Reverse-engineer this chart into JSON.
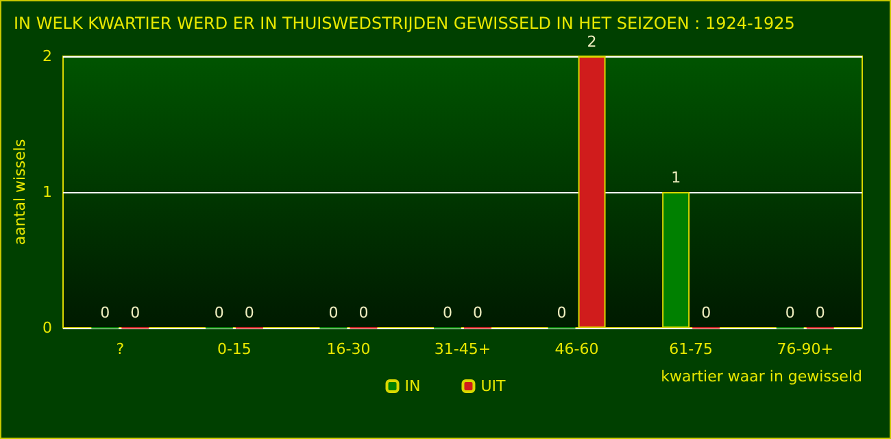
{
  "chart_data": {
    "type": "bar",
    "title": "IN WELK KWARTIER WERD ER IN THUISWEDSTRIJDEN GEWISSELD IN HET SEIZOEN : 1924-1925",
    "xlabel": "kwartier waar in gewisseld",
    "ylabel": "aantal wissels",
    "categories": [
      "?",
      "0-15",
      "16-30",
      "31-45+",
      "46-60",
      "61-75",
      "76-90+"
    ],
    "series": [
      {
        "name": "IN",
        "color": "#008000",
        "values": [
          0,
          0,
          0,
          0,
          0,
          1,
          0
        ]
      },
      {
        "name": "UIT",
        "color": "#d01c1c",
        "values": [
          0,
          0,
          0,
          0,
          2,
          0,
          0
        ]
      }
    ],
    "ylim": [
      0,
      2
    ],
    "yticks": [
      0,
      1,
      2
    ],
    "grid": "y",
    "legend": "bottom",
    "data_labels": true
  }
}
